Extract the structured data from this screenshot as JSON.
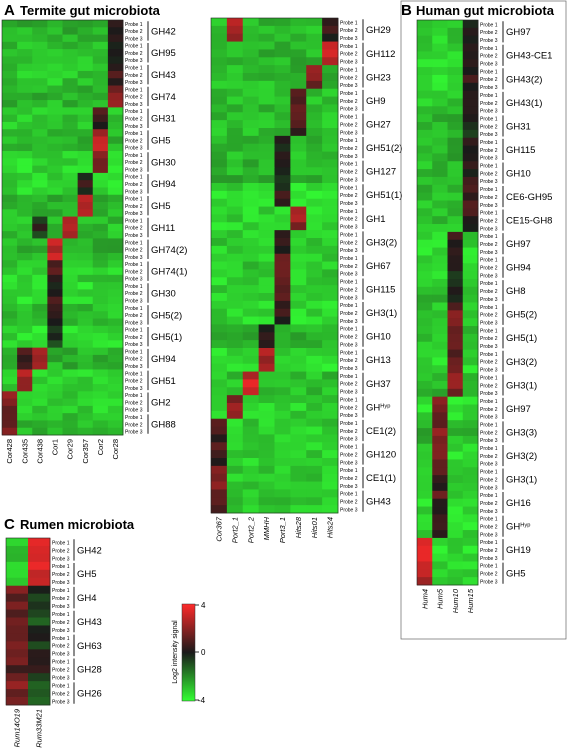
{
  "chart_data": [
    {
      "type": "heatmap",
      "panel_letter": "A",
      "title": "Termite gut microbiota",
      "probe_labels": [
        "Probe 1",
        "Probe 2",
        "Probe 3"
      ],
      "blocks": [
        {
          "columns": [
            "Cor428",
            "Cor435",
            "Cor438",
            "Cor1",
            "Cor29",
            "Cor357",
            "Cor2",
            "Cor28"
          ],
          "families": [
            {
              "name": "GH42",
              "hot": [
                [
                  7,
                  0.4
                ]
              ]
            },
            {
              "name": "GH95",
              "hot": [
                [
                  7,
                  0.4
                ]
              ]
            },
            {
              "name": "GH43",
              "hot": [
                [
                  7,
                  0.4
                ]
              ]
            },
            {
              "name": "GH74",
              "hot": [
                [
                  7,
                  1.6
                ]
              ]
            },
            {
              "name": "GH31",
              "hot": [
                [
                  6,
                  0.5
                ]
              ]
            },
            {
              "name": "GH5",
              "hot": [
                [
                  6,
                  2.6
                ]
              ]
            },
            {
              "name": "GH30",
              "hot": [
                [
                  6,
                  1.4
                ]
              ]
            },
            {
              "name": "GH94",
              "hot": [
                [
                  5,
                  0.2
                ]
              ]
            },
            {
              "name": "GH5",
              "hot": [
                [
                  5,
                  3.0
                ]
              ]
            },
            {
              "name": "GH11",
              "hot": [
                [
                  4,
                  3.0
                ],
                [
                  2,
                  -0.3
                ]
              ]
            },
            {
              "name": "GH74(2)",
              "hot": [
                [
                  3,
                  3.0
                ]
              ]
            },
            {
              "name": "GH74(1)",
              "hot": [
                [
                  3,
                  0.6
                ]
              ]
            },
            {
              "name": "GH30",
              "hot": [
                [
                  3,
                  0.4
                ]
              ]
            },
            {
              "name": "GH5(2)",
              "hot": [
                [
                  3,
                  0.4
                ]
              ]
            },
            {
              "name": "GH5(1)",
              "hot": [
                [
                  3,
                  -0.3
                ]
              ]
            },
            {
              "name": "GH94",
              "hot": [
                [
                  2,
                  2.4
                ],
                [
                  1,
                  0.8
                ]
              ]
            },
            {
              "name": "GH51",
              "hot": [
                [
                  1,
                  2.2
                ]
              ]
            },
            {
              "name": "GH2",
              "hot": [
                [
                  0,
                  1.8
                ]
              ]
            },
            {
              "name": "GH88",
              "hot": [
                [
                  0,
                  1.6
                ]
              ]
            }
          ]
        },
        {
          "columns": [
            "Cor367",
            "Port2_1",
            "Port2_2",
            "MMHH",
            "Port3_1",
            "Hits28",
            "Hits01",
            "Hits24"
          ],
          "families": [
            {
              "name": "GH29",
              "hot": [
                [
                  1,
                  2.4
                ],
                [
                  7,
                  0.6
                ]
              ]
            },
            {
              "name": "GH112",
              "hot": [
                [
                  7,
                  3.2
                ]
              ]
            },
            {
              "name": "GH23",
              "hot": [
                [
                  6,
                  1.8
                ]
              ]
            },
            {
              "name": "GH9",
              "hot": [
                [
                  5,
                  1.4
                ]
              ]
            },
            {
              "name": "GH27",
              "hot": [
                [
                  5,
                  0.8
                ]
              ]
            },
            {
              "name": "GH51(2)",
              "hot": [
                [
                  4,
                  0.2
                ]
              ]
            },
            {
              "name": "GH127",
              "hot": [
                [
                  4,
                  0.0
                ]
              ]
            },
            {
              "name": "GH51(1)",
              "hot": [
                [
                  4,
                  0.2
                ]
              ]
            },
            {
              "name": "GH1",
              "hot": [
                [
                  5,
                  2.2
                ]
              ]
            },
            {
              "name": "GH3(2)",
              "hot": [
                [
                  4,
                  0.6
                ]
              ]
            },
            {
              "name": "GH67",
              "hot": [
                [
                  4,
                  1.6
                ]
              ]
            },
            {
              "name": "GH115",
              "hot": [
                [
                  4,
                  1.2
                ]
              ]
            },
            {
              "name": "GH3(1)",
              "hot": [
                [
                  4,
                  0.4
                ]
              ]
            },
            {
              "name": "GH10",
              "hot": [
                [
                  3,
                  0.4
                ]
              ]
            },
            {
              "name": "GH13",
              "hot": [
                [
                  3,
                  2.6
                ]
              ]
            },
            {
              "name": "GH37",
              "hot": [
                [
                  2,
                  3.0
                ]
              ]
            },
            {
              "name": "GH",
              "sup": "Hyp",
              "hot": [
                [
                  1,
                  1.8
                ]
              ]
            },
            {
              "name": "CE1(2)",
              "hot": [
                [
                  0,
                  0.8
                ]
              ]
            },
            {
              "name": "GH120",
              "hot": [
                [
                  0,
                  0.6
                ]
              ]
            },
            {
              "name": "CE1(1)",
              "hot": [
                [
                  0,
                  1.4
                ]
              ]
            },
            {
              "name": "GH43",
              "hot": [
                [
                  0,
                  0.8
                ]
              ]
            }
          ]
        }
      ]
    },
    {
      "type": "heatmap",
      "panel_letter": "B",
      "title": "Human gut microbiota",
      "probe_labels": [
        "Probe 1",
        "Probe 2",
        "Probe 3"
      ],
      "columns": [
        "Hum4",
        "Hum5",
        "Hum10",
        "Hum15"
      ],
      "families": [
        {
          "name": "GH97",
          "hot": [
            [
              3,
              -0.4
            ]
          ]
        },
        {
          "name": "GH43-CE1",
          "hot": [
            [
              3,
              0.2
            ]
          ]
        },
        {
          "name": "GH43(2)",
          "hot": [
            [
              3,
              0.2
            ]
          ]
        },
        {
          "name": "GH43(1)",
          "hot": [
            [
              3,
              -0.2
            ]
          ]
        },
        {
          "name": "GH31",
          "hot": [
            [
              3,
              -0.4
            ]
          ]
        },
        {
          "name": "GH115",
          "hot": [
            [
              3,
              0.6
            ]
          ]
        },
        {
          "name": "GH10",
          "hot": [
            [
              3,
              0.4
            ]
          ]
        },
        {
          "name": "CE6-GH95",
          "hot": [
            [
              3,
              0.4
            ]
          ]
        },
        {
          "name": "CE15-GH8",
          "hot": [
            [
              3,
              0.4
            ]
          ]
        },
        {
          "name": "GH97",
          "hot": [
            [
              2,
              0.2
            ]
          ]
        },
        {
          "name": "GH94",
          "hot": [
            [
              2,
              -0.2
            ]
          ]
        },
        {
          "name": "GH8",
          "hot": [
            [
              2,
              -0.5
            ]
          ]
        },
        {
          "name": "GH5(2)",
          "hot": [
            [
              2,
              1.4
            ]
          ]
        },
        {
          "name": "GH5(1)",
          "hot": [
            [
              2,
              1.2
            ]
          ]
        },
        {
          "name": "GH3(2)",
          "hot": [
            [
              2,
              1.0
            ]
          ]
        },
        {
          "name": "GH3(1)",
          "hot": [
            [
              2,
              1.6
            ]
          ]
        },
        {
          "name": "GH97",
          "hot": [
            [
              1,
              1.6
            ]
          ]
        },
        {
          "name": "GH3(3)",
          "hot": [
            [
              1,
              1.8
            ]
          ]
        },
        {
          "name": "GH3(2)",
          "hot": [
            [
              1,
              1.4
            ]
          ]
        },
        {
          "name": "GH3(1)",
          "hot": [
            [
              1,
              0.6
            ]
          ]
        },
        {
          "name": "GH16",
          "hot": [
            [
              1,
              0.8
            ]
          ]
        },
        {
          "name": "GH",
          "sup": "Hyp",
          "hot": [
            [
              1,
              0.2
            ]
          ]
        },
        {
          "name": "GH19",
          "hot": [
            [
              0,
              3.2
            ]
          ]
        },
        {
          "name": "GH5",
          "hot": [
            [
              0,
              2.6
            ]
          ]
        }
      ]
    },
    {
      "type": "heatmap",
      "panel_letter": "C",
      "title": "Rumen microbiota",
      "probe_labels": [
        "Probe 1",
        "Probe 2",
        "Probe 3"
      ],
      "columns": [
        "Rum14O19",
        "Rum33M21"
      ],
      "families": [
        {
          "name": "GH42",
          "hot": [
            [
              1,
              3.4
            ]
          ]
        },
        {
          "name": "GH5",
          "hot": [
            [
              1,
              3.2
            ]
          ]
        },
        {
          "name": "GH4",
          "hot": [
            [
              0,
              1.6
            ],
            [
              1,
              -0.4
            ]
          ]
        },
        {
          "name": "GH43",
          "hot": [
            [
              0,
              1.4
            ],
            [
              1,
              -0.6
            ]
          ]
        },
        {
          "name": "GH63",
          "hot": [
            [
              0,
              1.4
            ],
            [
              1,
              -0.4
            ]
          ]
        },
        {
          "name": "GH28",
          "hot": [
            [
              0,
              1.2
            ],
            [
              1,
              0.0
            ]
          ]
        },
        {
          "name": "GH26",
          "hot": [
            [
              0,
              1.6
            ],
            [
              1,
              -1.6
            ]
          ]
        }
      ]
    }
  ],
  "colorbar": {
    "label": "Log2 intensity signal",
    "ticks": [
      "4",
      "0",
      "-4"
    ],
    "range": [
      -4,
      4
    ],
    "colors": {
      "low": "#33ff33",
      "mid": "#1a1a1a",
      "high": "#ff2a2a"
    }
  }
}
